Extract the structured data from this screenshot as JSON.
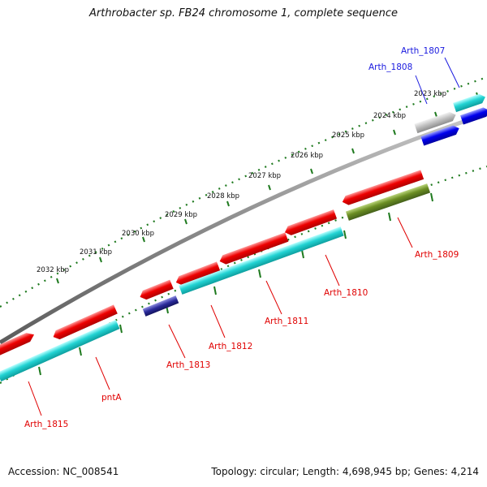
{
  "title": "Arthrobacter sp. FB24 chromosome 1, complete sequence",
  "footer": {
    "accession": "Accession: NC_008541",
    "topology": "Topology: circular; Length: 4,698,945 bp; Genes: 4,214"
  },
  "ruler": {
    "unit": "kbp",
    "ticks": [
      "2023 kbp",
      "2024 kbp",
      "2025 kbp",
      "2026 kbp",
      "2027 kbp",
      "2028 kbp",
      "2029 kbp",
      "2030 kbp",
      "2031 kbp",
      "2032 kbp"
    ]
  },
  "colors": {
    "backbone": "#8a8a8a",
    "tick": "#1f7a1f",
    "label_red": "#e00000",
    "label_blue": "#1a1adf",
    "gene_red": "#ee0000",
    "gene_cyan": "#22d3d3",
    "gene_blue": "#0000ee",
    "gene_gray": "#bdbdbd",
    "gene_olive": "#6b8e23",
    "gene_navy": "#2a2a9a"
  },
  "genes": [
    {
      "name": "Arth_1815",
      "track": "outer",
      "color": "gene_red",
      "label_color": "label_red"
    },
    {
      "name": "pntA",
      "track": "inner",
      "color": "gene_cyan",
      "label_color": "label_red"
    },
    {
      "name": "Arth_1813",
      "track": "inner",
      "color": "gene_navy",
      "label_color": "label_red"
    },
    {
      "name": "Arth_1812",
      "track": "outer",
      "color": "gene_red",
      "label_color": "label_red"
    },
    {
      "name": "Arth_1811",
      "track": "inner",
      "color": "gene_cyan",
      "label_color": "label_red"
    },
    {
      "name": "Arth_1810",
      "track": "outer",
      "color": "gene_red",
      "label_color": "label_red"
    },
    {
      "name": "Arth_1809",
      "track": "inner",
      "color": "gene_olive",
      "label_color": "label_red"
    },
    {
      "name": "Arth_1808",
      "track": "outer",
      "color": "gene_gray",
      "label_color": "label_blue"
    },
    {
      "name": "Arth_1807",
      "track": "outer",
      "color": "gene_cyan",
      "label_color": "label_blue"
    }
  ]
}
